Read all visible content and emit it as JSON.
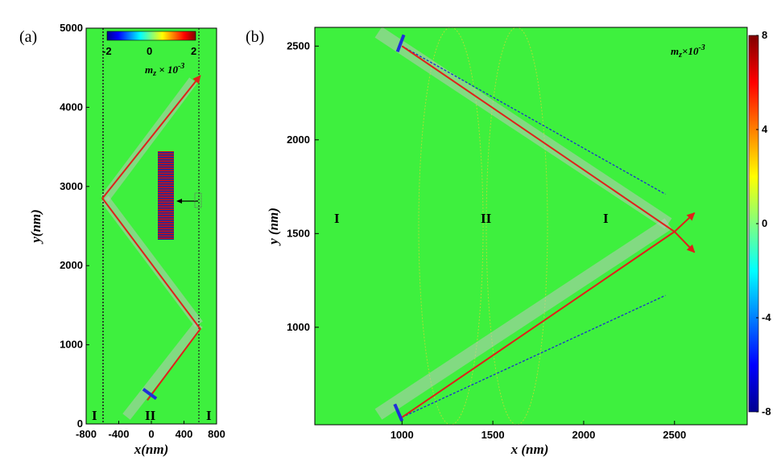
{
  "chart_data": [
    {
      "type": "heatmap",
      "panel_label": "(a)",
      "xlabel": "x(nm)",
      "ylabel": "y(nm)",
      "xlim": [
        -800,
        800
      ],
      "ylim": [
        0,
        5000
      ],
      "x_ticks": [
        "-800",
        "-400",
        "0",
        "400",
        "800"
      ],
      "y_ticks": [
        "0",
        "1000",
        "2000",
        "3000",
        "4000",
        "5000"
      ],
      "colorbar": {
        "label": "m_z×10^-3",
        "ticks": [
          "-2",
          "0",
          "2"
        ],
        "range": [
          -2,
          2
        ],
        "orientation": "horizontal"
      },
      "regions": [
        "I",
        "II",
        "I"
      ],
      "interfaces_x": [
        -600,
        600
      ],
      "ray_path": [
        {
          "x": -50,
          "y": 300
        },
        {
          "x": 600,
          "y": 1200
        },
        {
          "x": -600,
          "y": 2850
        },
        {
          "x": 600,
          "y": 4400
        }
      ],
      "source_marker": {
        "x1": -100,
        "y1": 440,
        "x2": 60,
        "y2": 320
      },
      "colors": {
        "background": "#3ef03e",
        "ray": "#e0201a",
        "source": "#1f2fd8"
      }
    },
    {
      "type": "heatmap",
      "panel_label": "(b)",
      "xlabel": "x (nm)",
      "ylabel": "y (nm)",
      "xlim": [
        520,
        2900
      ],
      "ylim": [
        480,
        2600
      ],
      "x_ticks": [
        "1000",
        "1500",
        "2000",
        "2500"
      ],
      "y_ticks": [
        "1000",
        "1500",
        "2000",
        "2500"
      ],
      "colorbar": {
        "label": "m_z×10^-3",
        "ticks": [
          "8",
          "4",
          "0",
          "-4",
          "-8"
        ],
        "range": [
          -8,
          8
        ],
        "orientation": "vertical"
      },
      "regions": [
        "I",
        "II",
        "I"
      ],
      "ray_path": [
        {
          "x": 1000,
          "y": 520
        },
        {
          "x": 2500,
          "y": 1510
        },
        {
          "x": 1000,
          "y": 2500
        }
      ],
      "ray_extensions": [
        {
          "x1": 2500,
          "y1": 1510,
          "x2": 2610,
          "y2": 1610
        },
        {
          "x1": 2500,
          "y1": 1510,
          "x2": 2610,
          "y2": 1400
        }
      ],
      "dashed_reference": [
        {
          "x1": 1000,
          "y1": 520,
          "x2": 2450,
          "y2": 1170
        },
        {
          "x1": 1000,
          "y1": 2500,
          "x2": 2450,
          "y2": 1710
        }
      ],
      "source_markers": [
        {
          "x1": 960,
          "y1": 590,
          "x2": 1000,
          "y2": 500
        },
        {
          "x1": 975,
          "y1": 2470,
          "x2": 1010,
          "y2": 2560
        }
      ],
      "colors": {
        "background": "#3ef03e",
        "ray": "#e0201a",
        "dashed": "#1a2fd0",
        "source": "#1f2fd8"
      }
    }
  ]
}
